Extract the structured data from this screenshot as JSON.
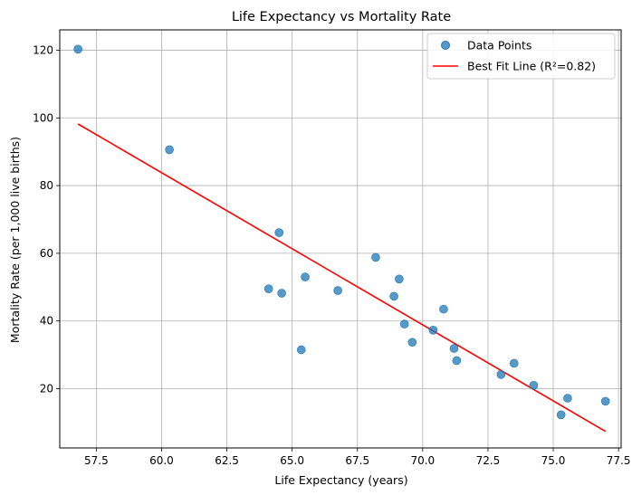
{
  "chart_data": {
    "type": "scatter",
    "title": "Life Expectancy vs Mortality Rate",
    "xlabel": "Life Expectancy (years)",
    "ylabel": "Mortality Rate (per 1,000 live births)",
    "xlim": [
      56.1,
      77.6
    ],
    "ylim": [
      2.5,
      126
    ],
    "xticks": [
      57.5,
      60.0,
      62.5,
      65.0,
      67.5,
      70.0,
      72.5,
      75.0,
      77.5
    ],
    "xtick_labels": [
      "57.5",
      "60.0",
      "62.5",
      "65.0",
      "67.5",
      "70.0",
      "72.5",
      "75.0",
      "77.5"
    ],
    "yticks": [
      20,
      40,
      60,
      80,
      100,
      120
    ],
    "ytick_labels": [
      "20",
      "40",
      "60",
      "80",
      "100",
      "120"
    ],
    "grid": true,
    "legend_position": "top-right",
    "series": [
      {
        "name": "Data Points",
        "kind": "scatter",
        "color": "#1f77b4",
        "points": [
          [
            56.8,
            120.3
          ],
          [
            60.3,
            90.6
          ],
          [
            64.1,
            49.5
          ],
          [
            64.5,
            66.1
          ],
          [
            64.6,
            48.2
          ],
          [
            65.35,
            31.5
          ],
          [
            65.5,
            53.0
          ],
          [
            66.75,
            49.0
          ],
          [
            68.2,
            58.8
          ],
          [
            68.9,
            47.3
          ],
          [
            69.1,
            52.4
          ],
          [
            69.3,
            39.1
          ],
          [
            69.6,
            33.7
          ],
          [
            70.4,
            37.3
          ],
          [
            70.8,
            43.5
          ],
          [
            71.2,
            31.9
          ],
          [
            71.3,
            28.3
          ],
          [
            73.0,
            24.2
          ],
          [
            73.5,
            27.5
          ],
          [
            74.25,
            21.0
          ],
          [
            75.3,
            12.3
          ],
          [
            75.55,
            17.2
          ],
          [
            77.0,
            16.3
          ]
        ]
      },
      {
        "name": "Best Fit Line (R²=0.82)",
        "kind": "line",
        "color": "#ff0000",
        "points": [
          [
            56.8,
            98.2
          ],
          [
            77.0,
            7.4
          ]
        ]
      }
    ]
  }
}
